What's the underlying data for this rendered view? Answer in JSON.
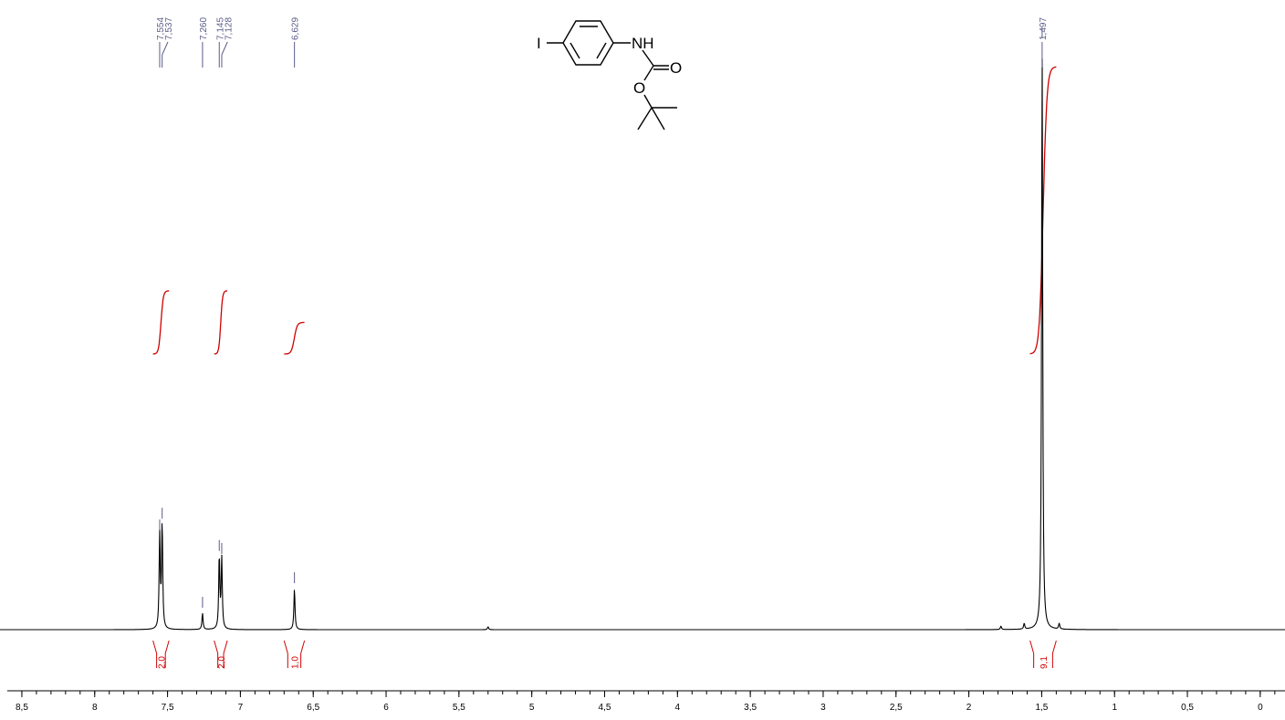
{
  "chart_data": {
    "type": "line",
    "title": "",
    "xlabel": "",
    "ylabel": "",
    "xlim": [
      8.65,
      -0.17
    ],
    "x_axis_reversed": true,
    "x_ticks": [
      {
        "value": 8.5,
        "label": "8,5"
      },
      {
        "value": 8.0,
        "label": "8"
      },
      {
        "value": 7.5,
        "label": "7,5"
      },
      {
        "value": 7.0,
        "label": "7"
      },
      {
        "value": 6.5,
        "label": "6,5"
      },
      {
        "value": 6.0,
        "label": "6"
      },
      {
        "value": 5.5,
        "label": "5,5"
      },
      {
        "value": 5.0,
        "label": "5"
      },
      {
        "value": 4.5,
        "label": "4,5"
      },
      {
        "value": 4.0,
        "label": "4"
      },
      {
        "value": 3.5,
        "label": "3,5"
      },
      {
        "value": 3.0,
        "label": "3"
      },
      {
        "value": 2.5,
        "label": "2,5"
      },
      {
        "value": 2.0,
        "label": "2"
      },
      {
        "value": 1.5,
        "label": "1,5"
      },
      {
        "value": 1.0,
        "label": "1"
      },
      {
        "value": 0.5,
        "label": "0,5"
      },
      {
        "value": 0.0,
        "label": "0"
      }
    ],
    "grid": false,
    "peaks": [
      {
        "shift": 7.554,
        "relative_height": 0.16,
        "label": "7,554"
      },
      {
        "shift": 7.537,
        "relative_height": 0.18,
        "label": "7,537"
      },
      {
        "shift": 7.26,
        "relative_height": 0.028,
        "label": "7,260"
      },
      {
        "shift": 7.145,
        "relative_height": 0.125,
        "label": "7,145"
      },
      {
        "shift": 7.128,
        "relative_height": 0.12,
        "label": "7,128"
      },
      {
        "shift": 6.629,
        "relative_height": 0.07,
        "label": "6,629"
      },
      {
        "shift": 1.497,
        "relative_height": 1.0,
        "label": "1,497"
      }
    ],
    "minor_peaks": [
      {
        "shift": 5.3,
        "relative_height": 0.005
      },
      {
        "shift": 1.78,
        "relative_height": 0.006
      },
      {
        "shift": 1.62,
        "relative_height": 0.01
      },
      {
        "shift": 1.38,
        "relative_height": 0.01
      }
    ],
    "integrals": [
      {
        "from": 7.6,
        "to": 7.49,
        "value": "2,0",
        "relative_step": 0.11
      },
      {
        "from": 7.18,
        "to": 7.09,
        "value": "2,0",
        "relative_step": 0.11
      },
      {
        "from": 6.7,
        "to": 6.56,
        "value": "1,0",
        "relative_step": 0.055
      },
      {
        "from": 1.58,
        "to": 1.4,
        "value": "9,1",
        "relative_step": 0.5
      }
    ],
    "colors": {
      "spectrum": "#000000",
      "integral": "#d00000",
      "peak_label": "#5c5c8a",
      "axis": "#000000"
    }
  },
  "structure": {
    "name_hint_atoms": [
      "I",
      "NH",
      "O",
      "O"
    ],
    "atom_labels": {
      "iodine": "I",
      "amine": "NH",
      "carbonyl_o": "O",
      "ester_o": "O"
    }
  }
}
